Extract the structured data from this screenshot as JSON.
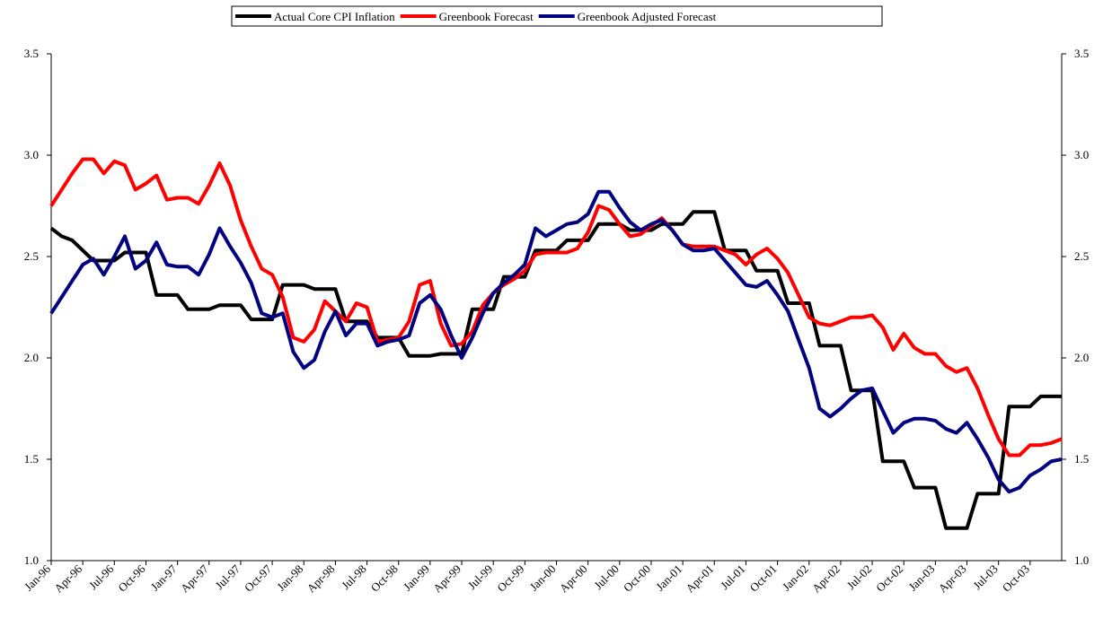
{
  "chart_data": {
    "type": "line",
    "categories": [
      "Jan-96",
      null,
      null,
      "Apr-96",
      null,
      null,
      "Jul-96",
      null,
      null,
      "Oct-96",
      null,
      null,
      "Jan-97",
      null,
      null,
      "Apr-97",
      null,
      null,
      "Jul-97",
      null,
      null,
      "Oct-97",
      null,
      null,
      "Jan-98",
      null,
      null,
      "Apr-98",
      null,
      null,
      "Jul-98",
      null,
      null,
      "Oct-98",
      null,
      null,
      "Jan-99",
      null,
      null,
      "Apr-99",
      null,
      null,
      "Jul-99",
      null,
      null,
      "Oct-99",
      null,
      null,
      "Jan-00",
      null,
      null,
      "Apr-00",
      null,
      null,
      "Jul-00",
      null,
      null,
      "Oct-00",
      null,
      null,
      "Jan-01",
      null,
      null,
      "Apr-01",
      null,
      null,
      "Jul-01",
      null,
      null,
      "Oct-01",
      null,
      null,
      "Jan-02",
      null,
      null,
      "Apr-02",
      null,
      null,
      "Jul-02",
      null,
      null,
      "Oct-02",
      null,
      null,
      "Jan-03",
      null,
      null,
      "Apr-03",
      null,
      null,
      "Jul-03",
      null,
      null,
      "Oct-03",
      null,
      null,
      null
    ],
    "series": [
      {
        "name": "Actual Core CPI Inflation",
        "color": "#000000",
        "values": [
          2.64,
          2.6,
          2.58,
          2.53,
          2.48,
          2.48,
          2.48,
          2.52,
          2.52,
          2.52,
          2.31,
          2.31,
          2.31,
          2.24,
          2.24,
          2.24,
          2.26,
          2.26,
          2.26,
          2.19,
          2.19,
          2.19,
          2.36,
          2.36,
          2.36,
          2.34,
          2.34,
          2.34,
          2.18,
          2.18,
          2.18,
          2.1,
          2.1,
          2.1,
          2.01,
          2.01,
          2.01,
          2.02,
          2.02,
          2.02,
          2.24,
          2.24,
          2.24,
          2.4,
          2.4,
          2.4,
          2.53,
          2.53,
          2.53,
          2.58,
          2.58,
          2.58,
          2.66,
          2.66,
          2.66,
          2.63,
          2.63,
          2.63,
          2.66,
          2.66,
          2.66,
          2.72,
          2.72,
          2.72,
          2.53,
          2.53,
          2.53,
          2.43,
          2.43,
          2.43,
          2.27,
          2.27,
          2.27,
          2.06,
          2.06,
          2.06,
          1.84,
          1.84,
          1.84,
          1.49,
          1.49,
          1.49,
          1.36,
          1.36,
          1.36,
          1.16,
          1.16,
          1.16,
          1.33,
          1.33,
          1.33,
          1.76,
          1.76,
          1.76,
          1.81,
          1.81,
          1.81
        ]
      },
      {
        "name": "Greenbook Forecast",
        "color": "#ff0000",
        "values": [
          2.75,
          2.83,
          2.91,
          2.98,
          2.98,
          2.91,
          2.97,
          2.95,
          2.83,
          2.86,
          2.9,
          2.78,
          2.79,
          2.79,
          2.76,
          2.85,
          2.96,
          2.85,
          2.68,
          2.55,
          2.44,
          2.41,
          2.3,
          2.1,
          2.08,
          2.14,
          2.28,
          2.23,
          2.18,
          2.27,
          2.25,
          2.08,
          2.09,
          2.1,
          2.18,
          2.36,
          2.38,
          2.17,
          2.06,
          2.07,
          2.13,
          2.26,
          2.32,
          2.36,
          2.39,
          2.43,
          2.51,
          2.52,
          2.52,
          2.52,
          2.54,
          2.62,
          2.75,
          2.73,
          2.66,
          2.6,
          2.61,
          2.65,
          2.69,
          2.63,
          2.56,
          2.55,
          2.55,
          2.55,
          2.53,
          2.51,
          2.46,
          2.51,
          2.54,
          2.49,
          2.42,
          2.31,
          2.2,
          2.17,
          2.16,
          2.18,
          2.2,
          2.2,
          2.21,
          2.15,
          2.04,
          2.12,
          2.05,
          2.02,
          2.02,
          1.96,
          1.93,
          1.95,
          1.85,
          1.72,
          1.6,
          1.52,
          1.52,
          1.57,
          1.57,
          1.58,
          1.6
        ]
      },
      {
        "name": "Greenbook Adjusted Forecast",
        "color": "#000080",
        "values": [
          2.22,
          2.3,
          2.38,
          2.46,
          2.49,
          2.41,
          2.5,
          2.6,
          2.44,
          2.48,
          2.57,
          2.46,
          2.45,
          2.45,
          2.41,
          2.51,
          2.64,
          2.55,
          2.47,
          2.37,
          2.22,
          2.2,
          2.22,
          2.03,
          1.95,
          1.99,
          2.13,
          2.23,
          2.11,
          2.17,
          2.17,
          2.06,
          2.08,
          2.09,
          2.11,
          2.27,
          2.31,
          2.24,
          2.11,
          2.0,
          2.1,
          2.22,
          2.32,
          2.37,
          2.41,
          2.46,
          2.64,
          2.6,
          2.63,
          2.66,
          2.67,
          2.71,
          2.82,
          2.82,
          2.74,
          2.67,
          2.63,
          2.66,
          2.68,
          2.63,
          2.56,
          2.53,
          2.53,
          2.54,
          2.48,
          2.42,
          2.36,
          2.35,
          2.38,
          2.31,
          2.23,
          2.09,
          1.95,
          1.75,
          1.71,
          1.75,
          1.8,
          1.84,
          1.85,
          1.74,
          1.63,
          1.68,
          1.7,
          1.7,
          1.69,
          1.65,
          1.63,
          1.68,
          1.6,
          1.51,
          1.4,
          1.34,
          1.36,
          1.42,
          1.45,
          1.49,
          1.5
        ]
      }
    ],
    "ylim": [
      1.0,
      3.5
    ],
    "yticks": [
      {
        "value": 1,
        "label": "1.0"
      },
      1.5,
      {
        "value": 2,
        "label": "2.0"
      },
      2.5,
      {
        "value": 3,
        "label": "3.0"
      },
      3.5
    ],
    "y2lim": [
      1.0,
      3.5
    ],
    "y2ticks": [
      {
        "value": 1,
        "label": "1.0"
      },
      1.5,
      {
        "value": 2,
        "label": "2.0"
      },
      2.5,
      {
        "value": 3,
        "label": "3.0"
      },
      3.5
    ],
    "legend": "top"
  }
}
